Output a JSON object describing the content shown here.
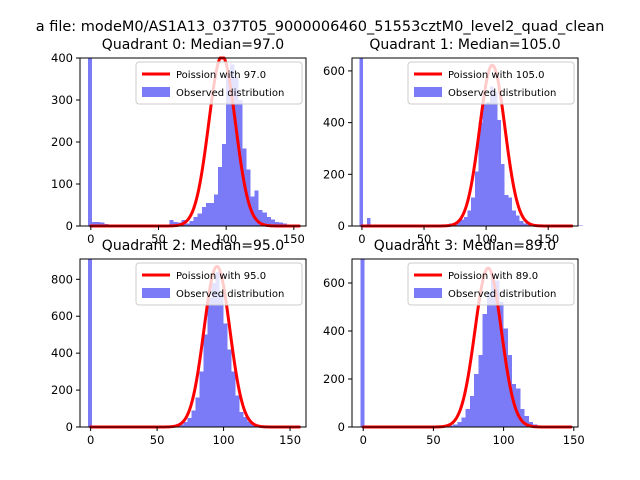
{
  "suptitle": "a file: modeM0/AS1A13_037T05_9000006460_51553cztM0_level2_quad_clean",
  "colors": {
    "hist": "#7b7bf7",
    "fit": "#ff0000",
    "legend_border": "#cccccc"
  },
  "chart_data": [
    {
      "type": "bar",
      "title": "Quadrant 0: Median=97.0",
      "xlim": [
        -8,
        159
      ],
      "ylim": [
        0,
        400
      ],
      "xticks": [
        0,
        50,
        100,
        150
      ],
      "yticks": [
        0,
        100,
        200,
        300,
        400
      ],
      "legend": {
        "position": "top-right",
        "fit_label": "Poission with 97.0",
        "hist_label": "Observed distribution"
      },
      "fit": {
        "mu": 97.0,
        "sigma": 9.85,
        "peak": 405
      },
      "bins_start": -2,
      "bin_width": 3,
      "counts": [
        400,
        9,
        10,
        8,
        5,
        4,
        2,
        1,
        2,
        1,
        1,
        2,
        1,
        2,
        2,
        4,
        2,
        3,
        3,
        2,
        14,
        10,
        8,
        14,
        6,
        12,
        22,
        30,
        45,
        55,
        55,
        75,
        140,
        195,
        360,
        385,
        355,
        300,
        185,
        135,
        70,
        85,
        38,
        32,
        22,
        15,
        10,
        8,
        6,
        4,
        2
      ]
    },
    {
      "type": "bar",
      "title": "Quadrant 1: Median=105.0",
      "xlim": [
        -8,
        174
      ],
      "ylim": [
        0,
        650
      ],
      "xticks": [
        0,
        50,
        100,
        150
      ],
      "yticks": [
        0,
        200,
        400,
        600
      ],
      "legend": {
        "position": "top-right",
        "fit_label": "Poission with 105.0",
        "hist_label": "Observed distribution"
      },
      "fit": {
        "mu": 105.0,
        "sigma": 10.25,
        "peak": 622
      },
      "bins_start": -2,
      "bin_width": 3,
      "counts": [
        650,
        6,
        30,
        4,
        2,
        1,
        1,
        1,
        1,
        1,
        1,
        1,
        1,
        1,
        1,
        1,
        1,
        1,
        1,
        2,
        1,
        2,
        4,
        6,
        10,
        12,
        18,
        25,
        35,
        60,
        110,
        210,
        400,
        470,
        480,
        540,
        520,
        410,
        240,
        120,
        110,
        60,
        40,
        20,
        10,
        6,
        3,
        2,
        1,
        1,
        1,
        1,
        1,
        1,
        1,
        1,
        1,
        1,
        1,
        1
      ]
    },
    {
      "type": "bar",
      "title": "Quadrant 2: Median=95.0",
      "xlim": [
        -8,
        162
      ],
      "ylim": [
        0,
        910
      ],
      "xticks": [
        0,
        50,
        100,
        150
      ],
      "yticks": [
        0,
        200,
        400,
        600,
        800
      ],
      "legend": {
        "position": "top-right",
        "fit_label": "Poission with 95.0",
        "hist_label": "Observed distribution"
      },
      "fit": {
        "mu": 95.0,
        "sigma": 9.75,
        "peak": 870
      },
      "bins_start": -2,
      "bin_width": 3,
      "counts": [
        910,
        6,
        3,
        1,
        1,
        1,
        1,
        1,
        1,
        1,
        1,
        1,
        1,
        1,
        1,
        1,
        1,
        1,
        1,
        2,
        3,
        4,
        8,
        14,
        26,
        50,
        90,
        160,
        300,
        500,
        700,
        780,
        840,
        720,
        560,
        420,
        300,
        170,
        80,
        55,
        30,
        15,
        8,
        4,
        2,
        2,
        1,
        1,
        1,
        1,
        1
      ]
    },
    {
      "type": "bar",
      "title": "Quadrant 3: Median=89.0",
      "xlim": [
        -8,
        153
      ],
      "ylim": [
        0,
        700
      ],
      "xticks": [
        0,
        50,
        100,
        150
      ],
      "yticks": [
        0,
        200,
        400,
        600
      ],
      "legend": {
        "position": "top-right",
        "fit_label": "Poission with 89.0",
        "hist_label": "Observed distribution"
      },
      "fit": {
        "mu": 89.0,
        "sigma": 9.43,
        "peak": 662
      },
      "bins_start": -2,
      "bin_width": 3,
      "counts": [
        700,
        5,
        2,
        1,
        1,
        1,
        1,
        1,
        1,
        1,
        1,
        1,
        1,
        1,
        1,
        1,
        1,
        1,
        1,
        2,
        3,
        6,
        10,
        20,
        40,
        75,
        130,
        220,
        300,
        470,
        560,
        630,
        610,
        520,
        410,
        300,
        180,
        160,
        75,
        45,
        20,
        10,
        5,
        3,
        2,
        1,
        1,
        1,
        1
      ]
    }
  ]
}
